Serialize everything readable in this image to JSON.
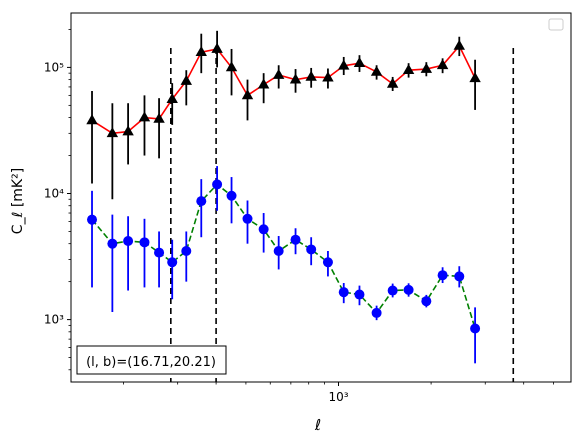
{
  "chart_data": {
    "type": "scatter",
    "title": "",
    "xlabel": "ℓ",
    "ylabel": "C_ℓ [mK²]",
    "xscale": "log",
    "yscale": "log",
    "xlim": [
      135,
      5700
    ],
    "ylim": [
      320,
      270000
    ],
    "x_ticks": [
      {
        "value": 1000,
        "label": "10³"
      }
    ],
    "y_ticks": [
      {
        "value": 1000,
        "label": "10³"
      },
      {
        "value": 10000,
        "label": "10⁴"
      },
      {
        "value": 100000,
        "label": "10⁵"
      }
    ],
    "grid": false,
    "legend": {
      "placement": "top-right",
      "entries": []
    },
    "annotation": "(l, b)=(16.71,20.21)",
    "vertical_dashed_lines": [
      285,
      400,
      3700
    ],
    "series": [
      {
        "marker": "triangle",
        "marker_color": "#000000",
        "line_color": "#ff0000",
        "line_style": "solid",
        "points": [
          {
            "x": 158,
            "y": 38000,
            "lo": 12000,
            "hi": 65000
          },
          {
            "x": 184,
            "y": 30000,
            "lo": 9000,
            "hi": 52000
          },
          {
            "x": 207,
            "y": 31000,
            "lo": 17000,
            "hi": 52000
          },
          {
            "x": 234,
            "y": 40000,
            "lo": 20000,
            "hi": 60000
          },
          {
            "x": 261,
            "y": 39000,
            "lo": 19000,
            "hi": 57000
          },
          {
            "x": 288,
            "y": 56000,
            "lo": 35000,
            "hi": 75000
          },
          {
            "x": 320,
            "y": 78000,
            "lo": 50000,
            "hi": 95000
          },
          {
            "x": 358,
            "y": 132000,
            "lo": 90000,
            "hi": 185000
          },
          {
            "x": 403,
            "y": 140000,
            "lo": 100000,
            "hi": 195000
          },
          {
            "x": 449,
            "y": 100000,
            "lo": 60000,
            "hi": 140000
          },
          {
            "x": 506,
            "y": 60000,
            "lo": 38000,
            "hi": 80000
          },
          {
            "x": 571,
            "y": 73000,
            "lo": 52000,
            "hi": 90000
          },
          {
            "x": 639,
            "y": 87000,
            "lo": 68000,
            "hi": 104000
          },
          {
            "x": 725,
            "y": 80000,
            "lo": 63000,
            "hi": 97000
          },
          {
            "x": 815,
            "y": 84000,
            "lo": 69000,
            "hi": 99000
          },
          {
            "x": 924,
            "y": 83000,
            "lo": 68000,
            "hi": 98000
          },
          {
            "x": 1040,
            "y": 103000,
            "lo": 87000,
            "hi": 121000
          },
          {
            "x": 1170,
            "y": 108000,
            "lo": 92000,
            "hi": 125000
          },
          {
            "x": 1330,
            "y": 92000,
            "lo": 80000,
            "hi": 104000
          },
          {
            "x": 1500,
            "y": 74000,
            "lo": 65000,
            "hi": 84000
          },
          {
            "x": 1690,
            "y": 95000,
            "lo": 83000,
            "hi": 108000
          },
          {
            "x": 1930,
            "y": 97000,
            "lo": 85000,
            "hi": 110000
          },
          {
            "x": 2180,
            "y": 104000,
            "lo": 90000,
            "hi": 118000
          },
          {
            "x": 2470,
            "y": 148000,
            "lo": 123000,
            "hi": 175000
          },
          {
            "x": 2780,
            "y": 82000,
            "lo": 46000,
            "hi": 115000
          }
        ]
      },
      {
        "marker": "circle",
        "marker_color": "#0000ff",
        "line_color": "#008000",
        "line_style": "dashed",
        "points": [
          {
            "x": 158,
            "y": 6200,
            "lo": 1800,
            "hi": 10500
          },
          {
            "x": 184,
            "y": 4000,
            "lo": 1150,
            "hi": 6800
          },
          {
            "x": 207,
            "y": 4200,
            "lo": 1700,
            "hi": 6600
          },
          {
            "x": 234,
            "y": 4100,
            "lo": 1800,
            "hi": 6300
          },
          {
            "x": 261,
            "y": 3400,
            "lo": 1800,
            "hi": 5000
          },
          {
            "x": 288,
            "y": 2850,
            "lo": 1450,
            "hi": 4300
          },
          {
            "x": 320,
            "y": 3500,
            "lo": 2000,
            "hi": 5000
          },
          {
            "x": 358,
            "y": 8700,
            "lo": 4500,
            "hi": 13000
          },
          {
            "x": 403,
            "y": 11800,
            "lo": 7300,
            "hi": 16500
          },
          {
            "x": 449,
            "y": 9600,
            "lo": 5800,
            "hi": 13500
          },
          {
            "x": 506,
            "y": 6300,
            "lo": 4000,
            "hi": 8800
          },
          {
            "x": 571,
            "y": 5200,
            "lo": 3400,
            "hi": 7000
          },
          {
            "x": 639,
            "y": 3500,
            "lo": 2500,
            "hi": 4600
          },
          {
            "x": 725,
            "y": 4300,
            "lo": 3300,
            "hi": 5300
          },
          {
            "x": 815,
            "y": 3600,
            "lo": 2700,
            "hi": 4500
          },
          {
            "x": 924,
            "y": 2850,
            "lo": 2200,
            "hi": 3500
          },
          {
            "x": 1040,
            "y": 1650,
            "lo": 1350,
            "hi": 1950
          },
          {
            "x": 1170,
            "y": 1580,
            "lo": 1300,
            "hi": 1860
          },
          {
            "x": 1330,
            "y": 1130,
            "lo": 990,
            "hi": 1290
          },
          {
            "x": 1500,
            "y": 1700,
            "lo": 1500,
            "hi": 1930
          },
          {
            "x": 1690,
            "y": 1720,
            "lo": 1520,
            "hi": 1940
          },
          {
            "x": 1930,
            "y": 1400,
            "lo": 1250,
            "hi": 1570
          },
          {
            "x": 2180,
            "y": 2250,
            "lo": 1950,
            "hi": 2600
          },
          {
            "x": 2470,
            "y": 2200,
            "lo": 1800,
            "hi": 2650
          },
          {
            "x": 2780,
            "y": 850,
            "lo": 450,
            "hi": 1250
          }
        ]
      }
    ]
  }
}
